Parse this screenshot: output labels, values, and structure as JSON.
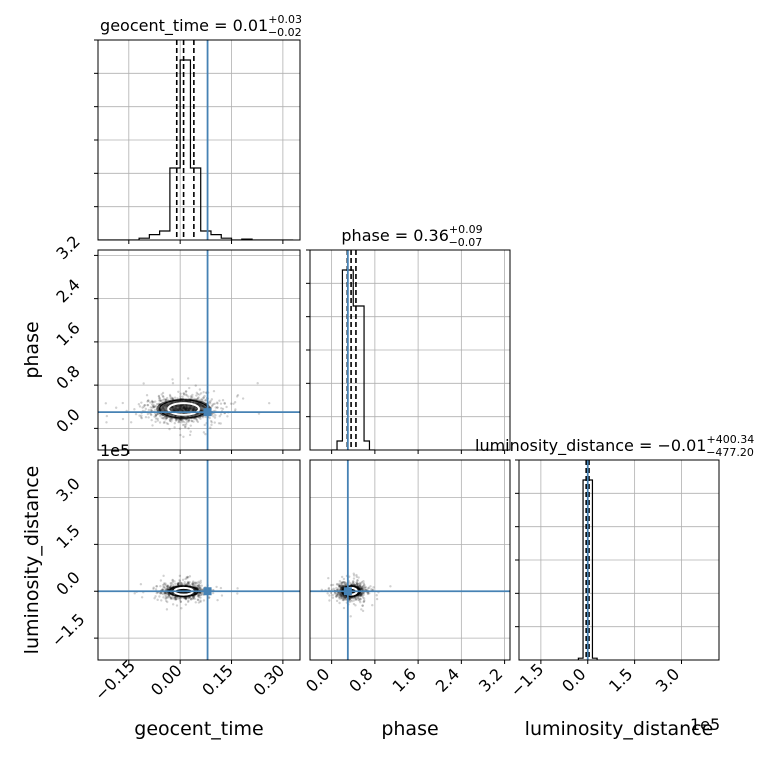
{
  "chart_data": {
    "type": "corner",
    "parameters": [
      "geocent_time",
      "phase",
      "luminosity_distance"
    ],
    "truths": {
      "geocent_time": 0.08,
      "phase": 0.3,
      "luminosity_distance": 0
    },
    "grid": true,
    "titles": [
      {
        "param": "geocent_time",
        "prefix": "geocent_time = 0.01",
        "plus": "+0.03",
        "minus": "−0.02"
      },
      {
        "param": "phase",
        "prefix": "phase = 0.36",
        "plus": "+0.09",
        "minus": "−0.07"
      },
      {
        "param": "luminosity_distance",
        "prefix": "luminosity_distance = −0.01",
        "plus": "+400.34",
        "minus": "−477.20"
      }
    ],
    "axes": {
      "geocent_time": {
        "label": "geocent_time",
        "range": [
          -0.24,
          0.35
        ],
        "ticks": [
          -0.15,
          0,
          0.15,
          0.3
        ],
        "tick_labels": [
          "−0.15",
          "0.00",
          "0.15",
          "0.30"
        ]
      },
      "phase": {
        "label": "phase",
        "range": [
          -0.4,
          3.3
        ],
        "ticks": [
          0,
          0.8,
          1.6,
          2.4,
          3.2
        ],
        "tick_labels": [
          "0.0",
          "0.8",
          "1.6",
          "2.4",
          "3.2"
        ]
      },
      "luminosity_distance": {
        "label": "luminosity_distance",
        "range": [
          -2.2,
          4.2
        ],
        "ticks": [
          -1.5,
          0,
          1.5,
          3.0
        ],
        "tick_labels": [
          "−1.5",
          "0.0",
          "1.5",
          "3.0"
        ],
        "offset_text": "1e5"
      }
    },
    "histograms": {
      "geocent_time": {
        "edges": [
          -0.24,
          -0.21,
          -0.18,
          -0.15,
          -0.12,
          -0.09,
          -0.06,
          -0.03,
          0,
          0.03,
          0.06,
          0.09,
          0.12,
          0.15,
          0.18,
          0.21,
          0.24,
          0.27,
          0.3,
          0.33
        ],
        "counts": [
          0,
          0,
          0,
          0,
          1,
          3,
          5,
          40,
          100,
          40,
          5,
          3,
          1,
          0,
          0.5,
          0,
          0,
          0,
          0
        ],
        "quantiles": [
          -0.01,
          0.01,
          0.04
        ]
      },
      "phase": {
        "edges": [
          0,
          0.1,
          0.2,
          0.3,
          0.4,
          0.5,
          0.6,
          0.7,
          0.8
        ],
        "counts": [
          0,
          5,
          100,
          100,
          80,
          80,
          5,
          0
        ],
        "quantiles": [
          0.29,
          0.36,
          0.45
        ]
      },
      "luminosity_distance": {
        "edges": [
          -0.3,
          -0.15,
          0,
          0.15,
          0.3
        ],
        "counts": [
          1,
          100,
          100,
          1
        ],
        "quantiles": [
          -0.05,
          -0.01,
          0.04
        ]
      }
    },
    "scatter_blobs": [
      {
        "x": "geocent_time",
        "y": "phase",
        "center": [
          0.01,
          0.36
        ],
        "spread": [
          0.05,
          0.12
        ]
      },
      {
        "x": "geocent_time",
        "y": "luminosity_distance",
        "center": [
          0.01,
          0
        ],
        "spread": [
          0.03,
          0.12
        ]
      },
      {
        "x": "phase",
        "y": "luminosity_distance",
        "center": [
          0.36,
          0
        ],
        "spread": [
          0.12,
          0.12
        ]
      }
    ]
  },
  "colors": {
    "truth": "#4682b4",
    "grid": "#b0b0b0",
    "hist": "#000000"
  }
}
